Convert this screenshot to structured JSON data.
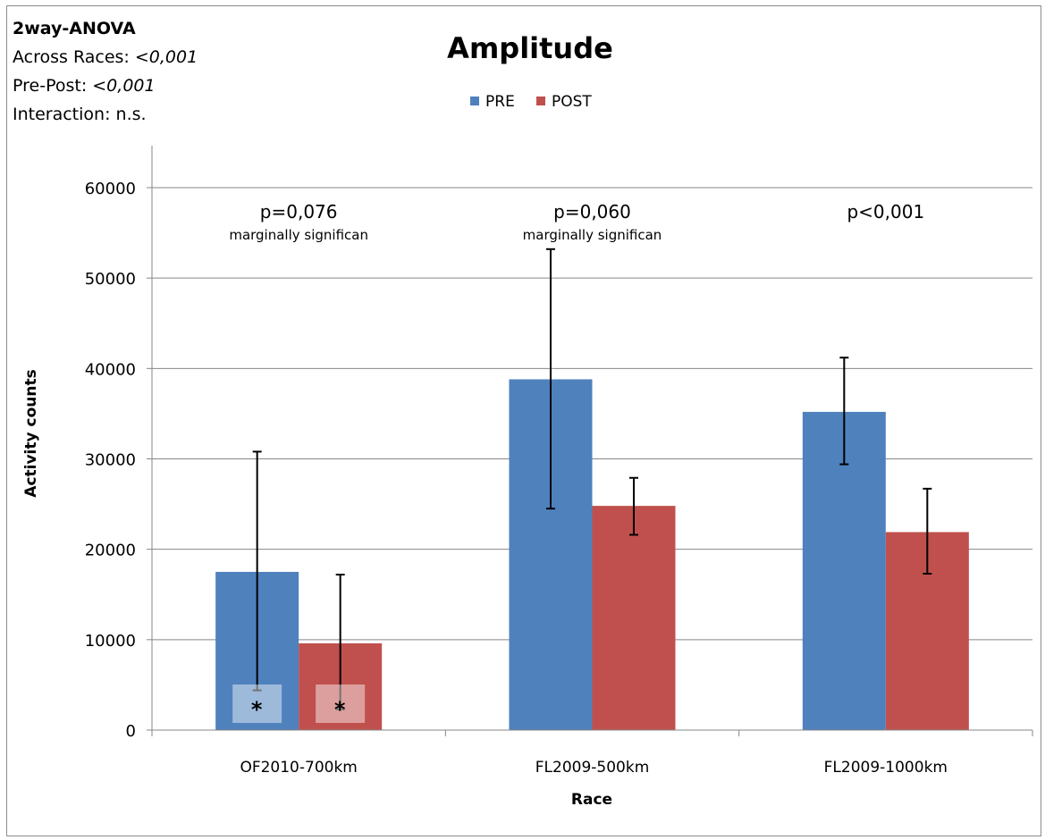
{
  "stats": {
    "test_label": "2way-ANOVA",
    "across_label": "Across Races: ",
    "across_value": "<0,001",
    "prepost_label": "Pre-Post: ",
    "prepost_value": "<0,001",
    "interaction_label": "Interaction:",
    "interaction_value": " n.s."
  },
  "colors": {
    "pre": "#4f81bd",
    "post": "#c0504d",
    "grid": "#878787",
    "axis": "#878787"
  },
  "chart_data": {
    "type": "bar",
    "title": "Amplitude",
    "xlabel": "Race",
    "ylabel": "Activity counts",
    "ylim": [
      0,
      60000
    ],
    "yticks": [
      0,
      10000,
      20000,
      30000,
      40000,
      50000,
      60000
    ],
    "ytick_labels": [
      "0",
      "10000",
      "20000",
      "30000",
      "40000",
      "50000",
      "60000"
    ],
    "categories": [
      "OF2010-700km",
      "FL2009-500km",
      "FL2009-1000km"
    ],
    "legend_position": "top-center",
    "grid": true,
    "series": [
      {
        "name": "PRE",
        "color": "#4f81bd",
        "values": [
          17500,
          38800,
          35200
        ],
        "error_low": [
          4400,
          24500,
          29400
        ],
        "error_high": [
          30800,
          53200,
          41200
        ]
      },
      {
        "name": "POST",
        "color": "#c0504d",
        "values": [
          9600,
          24800,
          21900
        ],
        "error_low": [
          2300,
          21600,
          17300
        ],
        "error_high": [
          17200,
          27900,
          26700
        ]
      }
    ],
    "annotations": [
      {
        "category": 0,
        "line1": "p=0,076",
        "line2": "marginally significan"
      },
      {
        "category": 1,
        "line1": "p=0,060",
        "line2": "marginally significan"
      },
      {
        "category": 2,
        "line1": "p<0,001",
        "line2": ""
      }
    ],
    "bar_markers": [
      {
        "category": 0,
        "series": 0,
        "text": "*"
      },
      {
        "category": 0,
        "series": 1,
        "text": "*"
      }
    ]
  }
}
